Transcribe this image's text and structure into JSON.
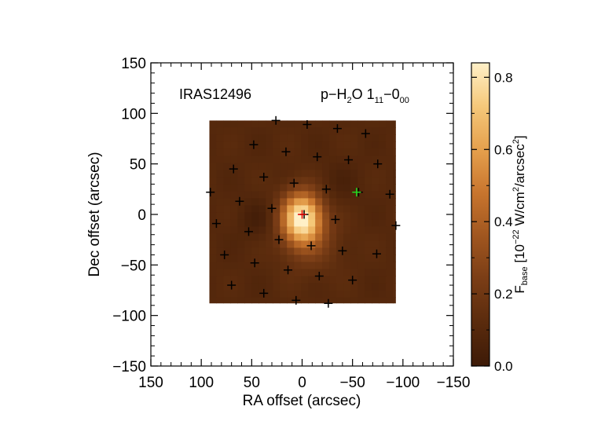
{
  "chart_data": {
    "type": "heatmap",
    "title_left": "IRAS12496",
    "title_right": {
      "species": "p−H",
      "sub1": "2",
      "mid": "O 1",
      "sub2": "11",
      "dash": "−0",
      "sub3": "00"
    },
    "xlabel": "RA offset (arcsec)",
    "ylabel": "Dec offset (arcsec)",
    "xlim": [
      150,
      -150
    ],
    "ylim": [
      -150,
      150
    ],
    "xticks": [
      150,
      100,
      50,
      0,
      -50,
      -100,
      -150
    ],
    "yticks": [
      150,
      100,
      50,
      0,
      -50,
      -100,
      -150
    ],
    "xtick_labels": [
      "150",
      "100",
      "50",
      "0",
      "−50",
      "−100",
      "−150"
    ],
    "ytick_labels": [
      "150",
      "100",
      "50",
      "0",
      "−50",
      "−100",
      "−150"
    ],
    "map_extent": {
      "ra": [
        92,
        -93
      ],
      "dec": [
        -88,
        93
      ]
    },
    "peak": {
      "ra": 0,
      "dec": 0,
      "value": 0.84
    },
    "colorbar": {
      "range": [
        0.0,
        0.84
      ],
      "ticks": [
        0.0,
        0.2,
        0.4,
        0.6,
        0.8
      ],
      "tick_labels": [
        "0.0",
        "0.2",
        "0.4",
        "0.6",
        "0.8"
      ],
      "label_main": "F",
      "label_sub": "base",
      "label_open": " [10",
      "label_exp1": "−22",
      "label_mid": " W/cm",
      "label_exp2": "2",
      "label_slash": "/arcsec",
      "label_exp3": "2",
      "label_close": "]"
    },
    "spaxels": [
      {
        "ra": 91,
        "dec": 22
      },
      {
        "ra": 85,
        "dec": -9
      },
      {
        "ra": 77,
        "dec": -40
      },
      {
        "ra": 70,
        "dec": -70
      },
      {
        "ra": 68,
        "dec": 45
      },
      {
        "ra": 62,
        "dec": 13
      },
      {
        "ra": 53,
        "dec": -17
      },
      {
        "ra": 47,
        "dec": -48
      },
      {
        "ra": 38,
        "dec": -78
      },
      {
        "ra": 48,
        "dec": 69
      },
      {
        "ra": 38,
        "dec": 37
      },
      {
        "ra": 30,
        "dec": 6
      },
      {
        "ra": 23,
        "dec": -25
      },
      {
        "ra": 14,
        "dec": -55
      },
      {
        "ra": 6,
        "dec": -85
      },
      {
        "ra": 26,
        "dec": 93
      },
      {
        "ra": 16,
        "dec": 62
      },
      {
        "ra": 8,
        "dec": 31
      },
      {
        "ra": -2,
        "dec": 0
      },
      {
        "ra": -9,
        "dec": -31
      },
      {
        "ra": -17,
        "dec": -61
      },
      {
        "ra": -26,
        "dec": -88
      },
      {
        "ra": -5,
        "dec": 89
      },
      {
        "ra": -15,
        "dec": 57
      },
      {
        "ra": -24,
        "dec": 25
      },
      {
        "ra": -33,
        "dec": -5
      },
      {
        "ra": -40,
        "dec": -36
      },
      {
        "ra": -50,
        "dec": -65
      },
      {
        "ra": -35,
        "dec": 85
      },
      {
        "ra": -46,
        "dec": 54
      },
      {
        "ra": -56,
        "dec": 22
      },
      {
        "ra": -63,
        "dec": 80
      },
      {
        "ra": -75,
        "dec": 50
      },
      {
        "ra": -74,
        "dec": -39
      },
      {
        "ra": -87,
        "dec": 20
      },
      {
        "ra": -93,
        "dec": -11
      }
    ],
    "highlight_spaxels": [
      {
        "ra": 0,
        "dec": 0,
        "color": "#e00000"
      },
      {
        "ra": -54,
        "dec": 22,
        "color": "#22dd22"
      }
    ],
    "colors": {
      "colormap": [
        "#3d1a07",
        "#5a2b0d",
        "#7a3d16",
        "#a0561f",
        "#c8752e",
        "#e5a04d",
        "#f5c87a",
        "#fff0c8"
      ],
      "marker": "#000000",
      "map_background": "#6e3413"
    }
  }
}
